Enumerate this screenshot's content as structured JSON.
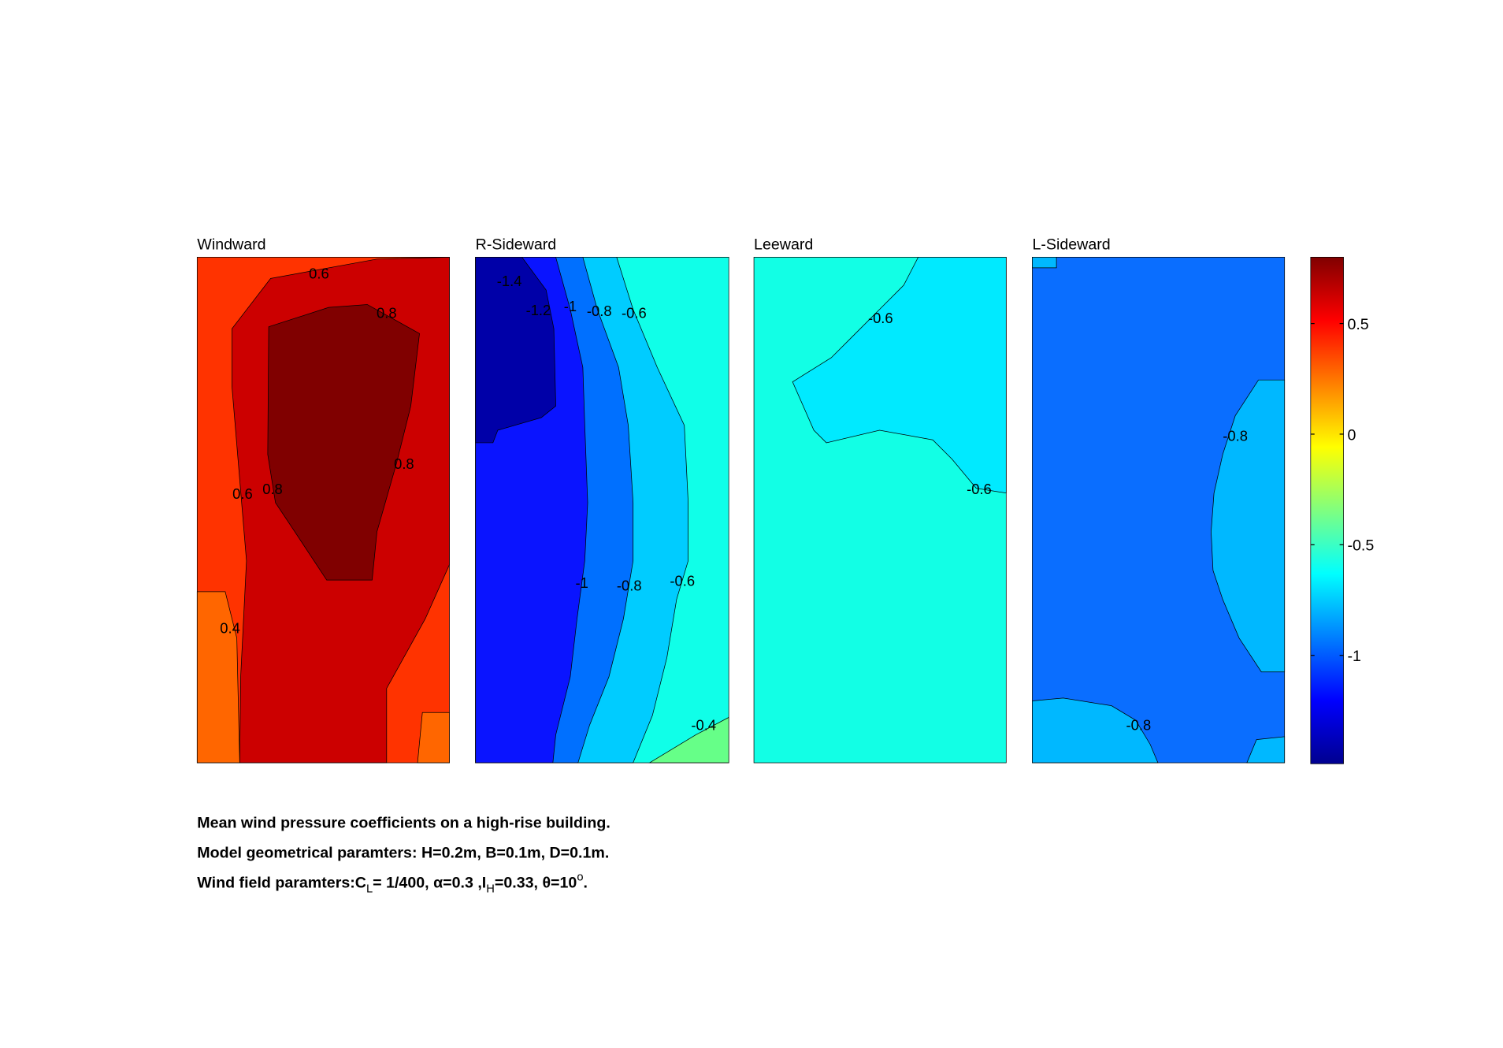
{
  "chart_data": {
    "type": "contour",
    "panels": [
      {
        "title": "Windward",
        "labels": [
          0.6,
          0.8,
          0.8,
          0.6,
          0.8,
          0.4
        ]
      },
      {
        "title": "R-Sideward",
        "labels": [
          -1.4,
          -1.2,
          -1,
          -0.8,
          -0.6,
          -1,
          -0.8,
          -0.6,
          -0.4
        ]
      },
      {
        "title": "Leeward",
        "labels": [
          -0.6,
          -0.6
        ]
      },
      {
        "title": "L-Sideward",
        "labels": [
          -0.8,
          -0.8
        ]
      }
    ],
    "colorbar": {
      "clim": [
        -1.49,
        0.8
      ],
      "ticks": [
        0.5,
        0,
        -0.5,
        -1
      ],
      "colormap": "jet"
    },
    "caption": [
      [
        "Mean wind pressure coefficients on a high-rise building."
      ],
      [
        "Model geometrical paramters: H=0.2m, B=0.1m, D=0.1m."
      ],
      [
        "Wind field paramters:C",
        "L",
        "= 1/400, α=0.3 ,I",
        "H",
        "=0.33, θ=10",
        "o",
        "."
      ]
    ]
  }
}
